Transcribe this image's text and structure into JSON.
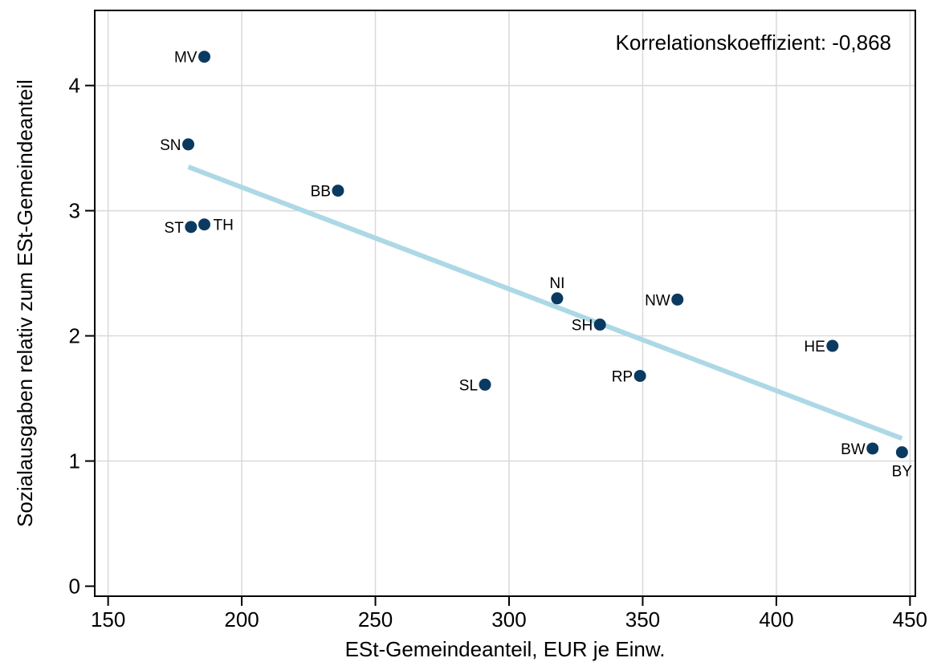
{
  "chart_data": {
    "type": "scatter",
    "title": "",
    "xlabel": "ESt-Gemeindeanteil, EUR je Einw.",
    "ylabel": "Sozialausgaben relativ zum ESt-Gemeindeanteil",
    "annotation": "Korrelationskoeffizient: -0,868",
    "xlim": [
      145,
      452
    ],
    "ylim": [
      -0.08,
      4.6
    ],
    "xticks": [
      150,
      200,
      250,
      300,
      350,
      400,
      450
    ],
    "yticks": [
      0,
      1,
      2,
      3,
      4
    ],
    "grid": true,
    "colors": {
      "points": "#0b3a61",
      "fit_line": "#add8e6",
      "grid": "#d9d9d9",
      "frame": "#000000"
    },
    "points": [
      {
        "label": "MV",
        "x": 186,
        "y": 4.23,
        "label_pos": "left"
      },
      {
        "label": "SN",
        "x": 180,
        "y": 3.53,
        "label_pos": "left"
      },
      {
        "label": "BB",
        "x": 236,
        "y": 3.16,
        "label_pos": "left"
      },
      {
        "label": "ST",
        "x": 181,
        "y": 2.87,
        "label_pos": "left"
      },
      {
        "label": "TH",
        "x": 186,
        "y": 2.89,
        "label_pos": "right"
      },
      {
        "label": "NI",
        "x": 318,
        "y": 2.3,
        "label_pos": "top"
      },
      {
        "label": "NW",
        "x": 363,
        "y": 2.29,
        "label_pos": "left"
      },
      {
        "label": "SH",
        "x": 334,
        "y": 2.09,
        "label_pos": "left"
      },
      {
        "label": "HE",
        "x": 421,
        "y": 1.92,
        "label_pos": "left"
      },
      {
        "label": "RP",
        "x": 349,
        "y": 1.68,
        "label_pos": "left"
      },
      {
        "label": "SL",
        "x": 291,
        "y": 1.61,
        "label_pos": "left"
      },
      {
        "label": "BW",
        "x": 436,
        "y": 1.1,
        "label_pos": "left"
      },
      {
        "label": "BY",
        "x": 447,
        "y": 1.07,
        "label_pos": "bottom"
      }
    ],
    "fit_line": {
      "x": [
        180,
        447
      ],
      "y": [
        3.35,
        1.18
      ]
    }
  }
}
